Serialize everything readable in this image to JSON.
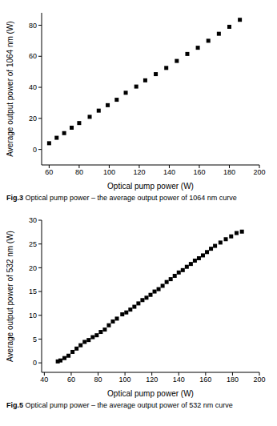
{
  "chart_data": [
    {
      "type": "scatter",
      "title": "Fig.3 Optical pump power – the average output power of 1064 nm curve",
      "x_label": "Optical pump power (W)",
      "y_label": "Average output power of 1064 nm (W)",
      "x": [
        60,
        65,
        70,
        75,
        80,
        87,
        93,
        99,
        105,
        111,
        118,
        124,
        131,
        138,
        145,
        152,
        159,
        166,
        173,
        180,
        187
      ],
      "y": [
        4,
        7.5,
        10.5,
        14,
        17,
        21,
        25,
        28.5,
        32,
        36.5,
        40.5,
        44.5,
        48.5,
        52.5,
        57,
        61.5,
        65.5,
        70,
        74.5,
        79,
        83.5
      ],
      "xlim": [
        55,
        200
      ],
      "xticks": [
        60,
        80,
        100,
        120,
        140,
        160,
        180,
        200
      ],
      "ylim": [
        -10,
        88
      ],
      "yticks": [
        0,
        20,
        40,
        60,
        80
      ],
      "color": "#000000",
      "marker": "square",
      "grid": false
    },
    {
      "type": "scatter",
      "title": "Fig.5 Optical pump power – the average output power of 532 nm curve",
      "x_label": "Optical pump power (W)",
      "y_label": "Average output power of 532 nm (W)",
      "x": [
        50,
        52,
        55,
        58,
        61,
        64,
        67,
        70,
        73,
        76,
        79,
        82,
        85,
        88,
        91,
        94,
        98,
        101,
        104,
        107,
        110,
        113,
        116,
        119,
        122,
        125,
        128,
        131,
        134,
        137,
        140,
        143,
        146,
        149,
        152,
        155,
        158,
        161,
        164,
        167,
        171,
        175,
        179,
        183,
        187
      ],
      "y": [
        0.3,
        0.5,
        1,
        1.5,
        2.3,
        3,
        3.7,
        4.4,
        4.8,
        5.4,
        5.8,
        6.5,
        7,
        7.9,
        8.7,
        9.3,
        10.2,
        10.6,
        11.2,
        11.8,
        12.5,
        13.2,
        13.7,
        14.3,
        15,
        15.5,
        16.2,
        17,
        17.6,
        18.3,
        19,
        19.5,
        20.2,
        20.8,
        21.5,
        22,
        22.6,
        23.3,
        24,
        24.6,
        25.3,
        26,
        26.6,
        27.3,
        27.6
      ],
      "xlim": [
        38,
        200
      ],
      "xticks": [
        40,
        60,
        80,
        100,
        120,
        140,
        160,
        180,
        200
      ],
      "ylim": [
        -2,
        30
      ],
      "yticks": [
        0,
        5,
        10,
        15,
        20,
        25,
        30
      ],
      "color": "#000000",
      "marker": "square",
      "grid": false
    }
  ]
}
